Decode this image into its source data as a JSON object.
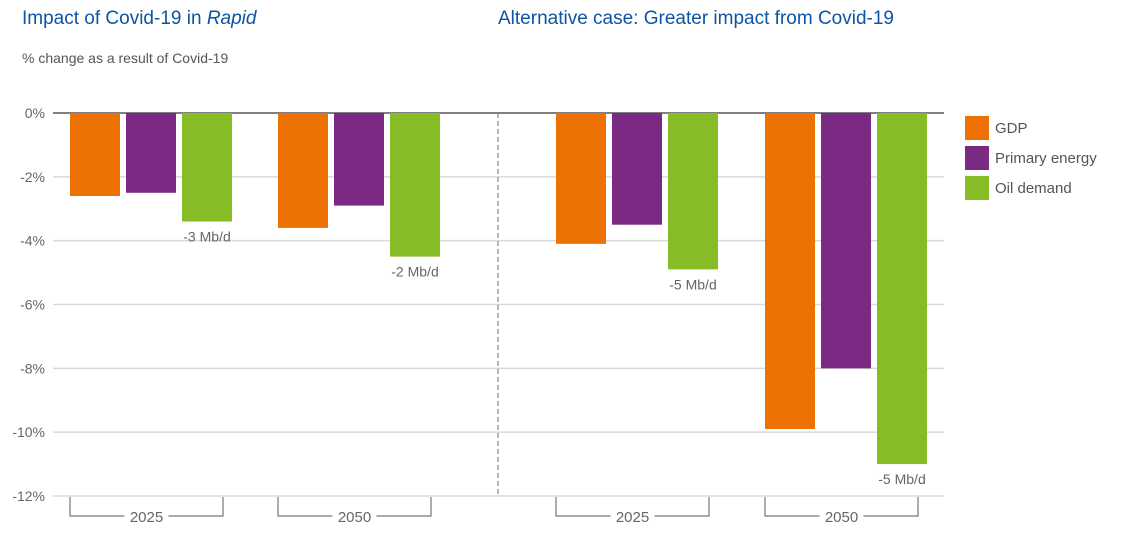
{
  "colors": {
    "title": "#0d55a4",
    "GDP": "#ee7203",
    "Primary energy": "#7b2a84",
    "Oil demand": "#86bc25",
    "grid": "#d9d9d9",
    "zero_line": "#555555",
    "text": "#666666"
  },
  "chart_data": {
    "type": "bar",
    "title_left": {
      "prefix": "Impact of Covid-19 in ",
      "italic": "Rapid"
    },
    "title_right": "Alternative case: Greater impact from Covid-19",
    "ylabel": "% change as a result of Covid-19",
    "ylim": [
      -12,
      0
    ],
    "yticks": [
      0,
      -2,
      -4,
      -6,
      -8,
      -10,
      -12
    ],
    "ytick_labels": [
      "0%",
      "-2%",
      "-4%",
      "-6%",
      "-8%",
      "-10%",
      "-12%"
    ],
    "grid": true,
    "legend_position": "right",
    "series_names": [
      "GDP",
      "Primary energy",
      "Oil demand"
    ],
    "panels": [
      {
        "name": "Rapid",
        "categories": [
          "2025",
          "2050"
        ],
        "series": [
          {
            "name": "GDP",
            "values": [
              -2.6,
              -3.6
            ]
          },
          {
            "name": "Primary energy",
            "values": [
              -2.5,
              -2.9
            ]
          },
          {
            "name": "Oil demand",
            "values": [
              -3.4,
              -4.5
            ]
          }
        ],
        "annotations": [
          "-3 Mb/d",
          "-2 Mb/d"
        ]
      },
      {
        "name": "Greater impact from Covid-19",
        "categories": [
          "2025",
          "2050"
        ],
        "series": [
          {
            "name": "GDP",
            "values": [
              -4.1,
              -9.9
            ]
          },
          {
            "name": "Primary energy",
            "values": [
              -3.5,
              -8.0
            ]
          },
          {
            "name": "Oil demand",
            "values": [
              -4.9,
              -11.0
            ]
          }
        ],
        "annotations": [
          "-5 Mb/d",
          "-5 Mb/d"
        ]
      }
    ]
  },
  "legend": [
    {
      "label": "GDP"
    },
    {
      "label": "Primary energy"
    },
    {
      "label": "Oil demand"
    }
  ]
}
